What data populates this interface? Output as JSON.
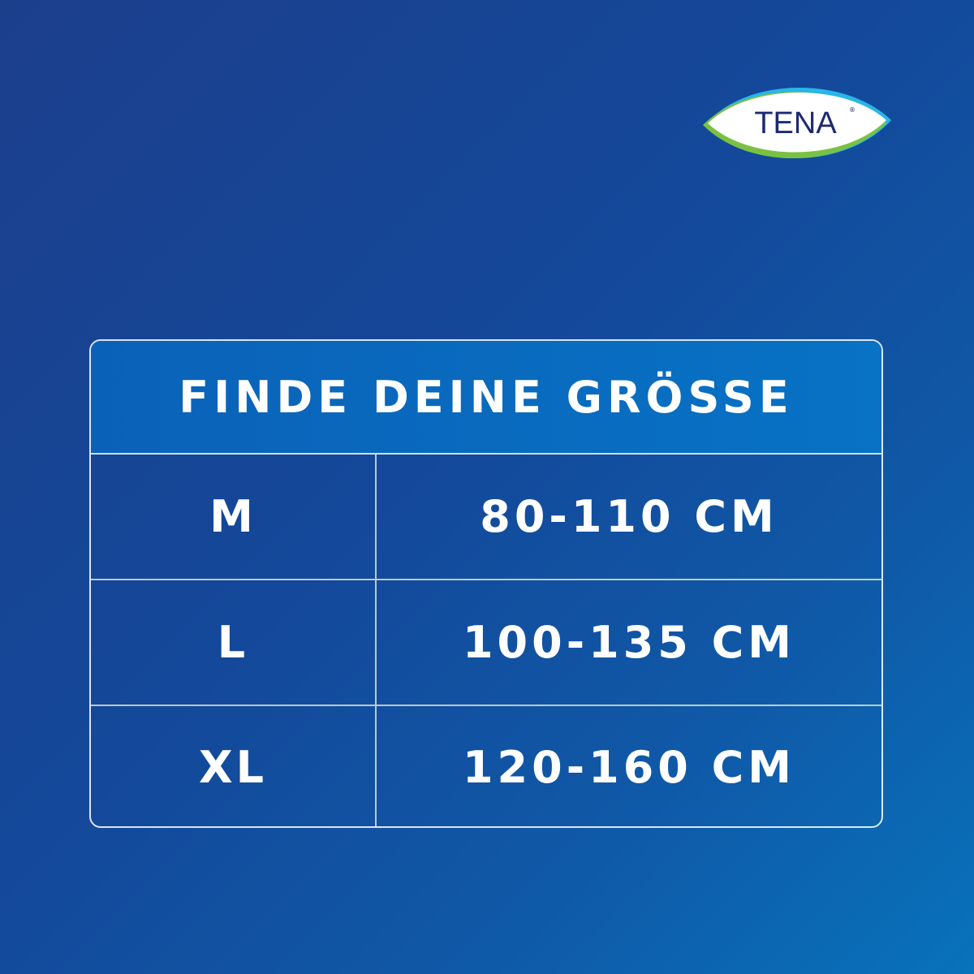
{
  "brand": {
    "logo_text": "TENA",
    "colors": {
      "logo_text": "#1d2a72",
      "leaf_green": "#7ac143",
      "leaf_cyan": "#29b6e8"
    }
  },
  "table": {
    "title": "FINDE DEINE GRÖSSE",
    "rows": [
      {
        "size": "M",
        "range": "80-110 CM"
      },
      {
        "size": "L",
        "range": "100-135 CM"
      },
      {
        "size": "XL",
        "range": "120-160 CM"
      }
    ]
  },
  "colors": {
    "background": "#14489a",
    "header": "#0a6ec0",
    "text": "#ffffff"
  }
}
